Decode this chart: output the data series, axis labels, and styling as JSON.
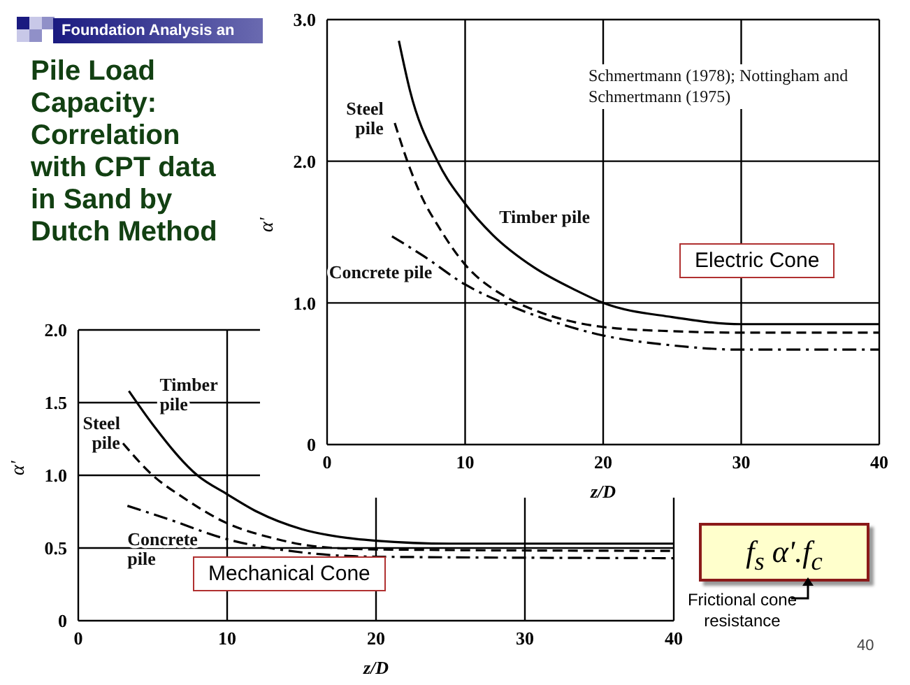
{
  "chart_data": [
    {
      "type": "line",
      "title": "Pile Load Capacity: Correlation with CPT data in Sand by Dutch Method",
      "subtitle": "Foundation Analysis an",
      "xlabel": "z/D",
      "ylabel": "α'",
      "xlim": [
        0,
        40
      ],
      "xticks": [
        0,
        10,
        20,
        30,
        40
      ],
      "ylim": [
        0,
        3
      ],
      "yticks": [
        {
          "value": 0,
          "label": "0"
        },
        {
          "value": 1,
          "label": "1.0"
        },
        {
          "value": 2,
          "label": "2.0"
        },
        {
          "value": 3,
          "label": "3.0"
        }
      ],
      "grid": true,
      "marker": "none",
      "series": [
        {
          "name": "Timber pile",
          "color": "#000000",
          "line_style": "solid",
          "x": [
            5.2,
            6,
            8,
            10,
            12,
            15,
            18,
            20,
            25,
            30,
            40
          ],
          "values": [
            2.85,
            2.5,
            2.0,
            1.7,
            1.48,
            1.25,
            1.09,
            1.0,
            0.9,
            0.85,
            0.85
          ]
        },
        {
          "name": "Steel pile",
          "color": "#000000",
          "line_style": "dashed",
          "x": [
            4.9,
            6,
            7,
            8,
            10,
            13,
            15,
            20,
            25,
            30,
            40
          ],
          "values": [
            2.27,
            1.95,
            1.72,
            1.55,
            1.27,
            1.04,
            0.95,
            0.83,
            0.8,
            0.79,
            0.79
          ]
        },
        {
          "name": "Concrete pile",
          "color": "#000000",
          "line_style": "dotted",
          "x": [
            4.7,
            7,
            10,
            13,
            16,
            20,
            25,
            30,
            40
          ],
          "values": [
            1.47,
            1.33,
            1.13,
            0.99,
            0.88,
            0.77,
            0.7,
            0.67,
            0.67
          ]
        }
      ],
      "annotations": [
        "Schmertmann (1978); Nottingham and Schmertmann (1975)",
        "Electric Cone"
      ]
    },
    {
      "type": "line",
      "xlabel": "z/D",
      "ylabel": "α'",
      "xlim": [
        0,
        40
      ],
      "xticks": [
        0,
        10,
        20,
        30,
        40
      ],
      "ylim": [
        0,
        2
      ],
      "yticks": [
        {
          "value": 0,
          "label": "0"
        },
        {
          "value": 0.5,
          "label": "0.5"
        },
        {
          "value": 1,
          "label": "1.0"
        },
        {
          "value": 1.5,
          "label": "1.5"
        },
        {
          "value": 2,
          "label": "2.0"
        }
      ],
      "grid": true,
      "marker": "none",
      "series": [
        {
          "name": "Timber pile",
          "color": "#000000",
          "line_style": "solid",
          "x": [
            3.4,
            5,
            8,
            10,
            12,
            15,
            18,
            20,
            25,
            40
          ],
          "values": [
            1.58,
            1.35,
            1.0,
            0.87,
            0.75,
            0.63,
            0.57,
            0.55,
            0.53,
            0.53
          ]
        },
        {
          "name": "Steel pile",
          "color": "#000000",
          "line_style": "dashed",
          "x": [
            3.0,
            5,
            7,
            10,
            13,
            16,
            20,
            40
          ],
          "values": [
            1.22,
            1.0,
            0.85,
            0.67,
            0.57,
            0.51,
            0.49,
            0.48
          ]
        },
        {
          "name": "Concrete pile",
          "color": "#000000",
          "line_style": "dotted",
          "x": [
            3.3,
            6,
            10,
            15,
            20,
            40
          ],
          "values": [
            0.79,
            0.7,
            0.56,
            0.47,
            0.44,
            0.43
          ]
        }
      ],
      "annotations": [
        "Mechanical Cone",
        "f$_{s}$   α'.f$_{c}$",
        "Frictional cone resistance",
        "40"
      ]
    }
  ]
}
